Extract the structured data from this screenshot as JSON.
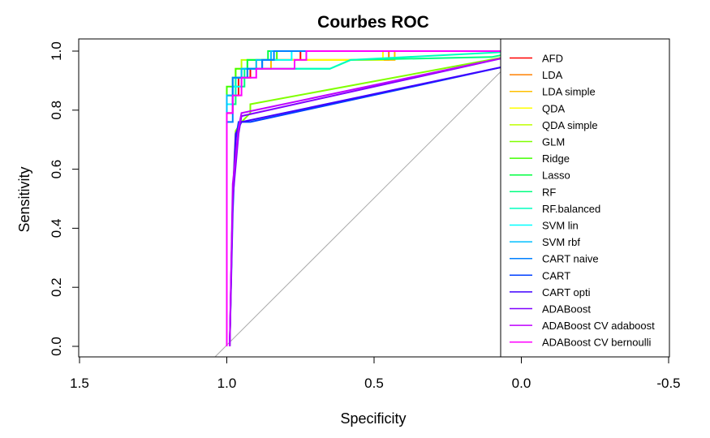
{
  "chart_data": {
    "type": "line",
    "title": "Courbes ROC",
    "xlabel": "Specificity",
    "ylabel": "Sensitivity",
    "xlim": [
      1.5,
      -0.5
    ],
    "ylim": [
      0.0,
      1.0
    ],
    "x_reversed": true,
    "x_ticks": [
      "1.5",
      "1.0",
      "0.5",
      "0.0",
      "-0.5"
    ],
    "y_ticks": [
      "0.0",
      "0.2",
      "0.4",
      "0.6",
      "0.8",
      "1.0"
    ],
    "legend_position": "right",
    "reference_line": {
      "from": [
        1.0,
        0.0
      ],
      "to": [
        0.0,
        1.0
      ],
      "color": "#aaaaaa"
    },
    "series": [
      {
        "name": "AFD",
        "color": "#ff0000",
        "points": [
          [
            1.0,
            0.0
          ],
          [
            1.0,
            0.79
          ],
          [
            0.98,
            0.79
          ],
          [
            0.98,
            0.85
          ],
          [
            0.96,
            0.85
          ],
          [
            0.96,
            0.91
          ],
          [
            0.92,
            0.91
          ],
          [
            0.92,
            0.94
          ],
          [
            0.88,
            0.94
          ],
          [
            0.88,
            0.97
          ],
          [
            0.75,
            0.97
          ],
          [
            0.75,
            1.0
          ],
          [
            0.0,
            1.0
          ]
        ]
      },
      {
        "name": "LDA",
        "color": "#ff8000",
        "points": [
          [
            1.0,
            0.0
          ],
          [
            1.0,
            0.82
          ],
          [
            0.98,
            0.82
          ],
          [
            0.98,
            0.88
          ],
          [
            0.95,
            0.88
          ],
          [
            0.95,
            0.94
          ],
          [
            0.85,
            0.94
          ],
          [
            0.85,
            0.97
          ],
          [
            0.45,
            0.97
          ],
          [
            0.45,
            1.0
          ],
          [
            0.0,
            1.0
          ]
        ]
      },
      {
        "name": "LDA simple",
        "color": "#ffbf00",
        "points": [
          [
            1.0,
            0.0
          ],
          [
            1.0,
            0.85
          ],
          [
            0.98,
            0.85
          ],
          [
            0.98,
            0.91
          ],
          [
            0.95,
            0.91
          ],
          [
            0.95,
            0.94
          ],
          [
            0.85,
            0.94
          ],
          [
            0.85,
            0.97
          ],
          [
            0.43,
            0.97
          ],
          [
            0.43,
            1.0
          ],
          [
            0.0,
            1.0
          ]
        ]
      },
      {
        "name": "QDA",
        "color": "#ffff00",
        "points": [
          [
            1.0,
            0.0
          ],
          [
            1.0,
            0.82
          ],
          [
            0.97,
            0.82
          ],
          [
            0.97,
            0.94
          ],
          [
            0.9,
            0.94
          ],
          [
            0.9,
            0.97
          ],
          [
            0.47,
            0.97
          ],
          [
            0.47,
            1.0
          ],
          [
            0.0,
            1.0
          ]
        ]
      },
      {
        "name": "QDA simple",
        "color": "#bfff00",
        "points": [
          [
            1.0,
            0.0
          ],
          [
            1.0,
            0.85
          ],
          [
            0.98,
            0.85
          ],
          [
            0.98,
            0.91
          ],
          [
            0.95,
            0.91
          ],
          [
            0.95,
            0.97
          ],
          [
            0.85,
            0.97
          ],
          [
            0.85,
            1.0
          ],
          [
            0.0,
            1.0
          ]
        ]
      },
      {
        "name": "GLM",
        "color": "#80ff00",
        "points": [
          [
            0.99,
            0.0
          ],
          [
            0.98,
            0.5
          ],
          [
            0.97,
            0.73
          ],
          [
            0.95,
            0.76
          ],
          [
            0.92,
            0.79
          ],
          [
            0.92,
            0.82
          ],
          [
            0.0,
            0.99
          ]
        ]
      },
      {
        "name": "Ridge",
        "color": "#40ff00",
        "points": [
          [
            1.0,
            0.0
          ],
          [
            1.0,
            0.88
          ],
          [
            0.97,
            0.88
          ],
          [
            0.97,
            0.94
          ],
          [
            0.93,
            0.94
          ],
          [
            0.93,
            0.97
          ],
          [
            0.83,
            0.97
          ],
          [
            0.83,
            1.0
          ],
          [
            0.0,
            1.0
          ]
        ]
      },
      {
        "name": "Lasso",
        "color": "#00ff40",
        "points": [
          [
            1.0,
            0.0
          ],
          [
            1.0,
            0.85
          ],
          [
            0.97,
            0.85
          ],
          [
            0.97,
            0.91
          ],
          [
            0.93,
            0.91
          ],
          [
            0.93,
            0.97
          ],
          [
            0.86,
            0.97
          ],
          [
            0.86,
            1.0
          ],
          [
            0.0,
            1.0
          ]
        ]
      },
      {
        "name": "RF",
        "color": "#00ff80",
        "points": [
          [
            1.0,
            0.0
          ],
          [
            1.0,
            0.82
          ],
          [
            0.97,
            0.82
          ],
          [
            0.97,
            0.88
          ],
          [
            0.94,
            0.88
          ],
          [
            0.94,
            0.94
          ],
          [
            0.65,
            0.94
          ],
          [
            0.58,
            0.97
          ],
          [
            0.1,
            0.98
          ],
          [
            0.0,
            1.0
          ]
        ]
      },
      {
        "name": "RF.balanced",
        "color": "#00ffbf",
        "points": [
          [
            1.0,
            0.0
          ],
          [
            1.0,
            0.85
          ],
          [
            0.97,
            0.85
          ],
          [
            0.97,
            0.91
          ],
          [
            0.93,
            0.91
          ],
          [
            0.93,
            0.94
          ],
          [
            0.65,
            0.94
          ],
          [
            0.58,
            0.97
          ],
          [
            0.0,
            1.0
          ]
        ]
      },
      {
        "name": "SVM lin",
        "color": "#00ffff",
        "points": [
          [
            1.0,
            0.0
          ],
          [
            1.0,
            0.82
          ],
          [
            0.98,
            0.82
          ],
          [
            0.98,
            0.88
          ],
          [
            0.95,
            0.88
          ],
          [
            0.95,
            0.94
          ],
          [
            0.88,
            0.94
          ],
          [
            0.88,
            0.97
          ],
          [
            0.78,
            0.97
          ],
          [
            0.78,
            1.0
          ],
          [
            0.0,
            1.0
          ]
        ]
      },
      {
        "name": "SVM rbf",
        "color": "#00bfff",
        "points": [
          [
            1.0,
            0.0
          ],
          [
            1.0,
            0.85
          ],
          [
            0.98,
            0.85
          ],
          [
            0.98,
            0.91
          ],
          [
            0.95,
            0.91
          ],
          [
            0.95,
            0.94
          ],
          [
            0.9,
            0.94
          ],
          [
            0.9,
            0.97
          ],
          [
            0.85,
            0.97
          ],
          [
            0.85,
            1.0
          ],
          [
            0.0,
            1.0
          ]
        ]
      },
      {
        "name": "CART naive",
        "color": "#0080ff",
        "points": [
          [
            1.0,
            0.0
          ],
          [
            1.0,
            0.76
          ],
          [
            0.98,
            0.76
          ],
          [
            0.98,
            0.91
          ],
          [
            0.93,
            0.91
          ],
          [
            0.93,
            0.94
          ],
          [
            0.88,
            0.94
          ],
          [
            0.88,
            0.97
          ],
          [
            0.84,
            0.97
          ],
          [
            0.84,
            1.0
          ],
          [
            0.0,
            1.0
          ]
        ]
      },
      {
        "name": "CART",
        "color": "#0040ff",
        "points": [
          [
            0.99,
            0.0
          ],
          [
            0.98,
            0.45
          ],
          [
            0.97,
            0.7
          ],
          [
            0.96,
            0.76
          ],
          [
            0.92,
            0.76
          ],
          [
            0.0,
            0.96
          ]
        ]
      },
      {
        "name": "CART opti",
        "color": "#4000ff",
        "points": [
          [
            0.99,
            0.0
          ],
          [
            0.98,
            0.5
          ],
          [
            0.97,
            0.72
          ],
          [
            0.95,
            0.76
          ],
          [
            0.0,
            0.96
          ]
        ]
      },
      {
        "name": "ADABoost",
        "color": "#8000ff",
        "points": [
          [
            0.99,
            0.0
          ],
          [
            0.98,
            0.5
          ],
          [
            0.96,
            0.72
          ],
          [
            0.95,
            0.78
          ],
          [
            0.0,
            0.99
          ]
        ]
      },
      {
        "name": "ADABoost CV adaboost",
        "color": "#bf00ff",
        "points": [
          [
            0.99,
            0.0
          ],
          [
            0.98,
            0.55
          ],
          [
            0.96,
            0.74
          ],
          [
            0.95,
            0.79
          ],
          [
            0.0,
            0.99
          ]
        ]
      },
      {
        "name": "ADABoost CV bernoulli",
        "color": "#ff00ff",
        "points": [
          [
            1.0,
            0.0
          ],
          [
            1.0,
            0.79
          ],
          [
            0.98,
            0.79
          ],
          [
            0.98,
            0.85
          ],
          [
            0.95,
            0.85
          ],
          [
            0.95,
            0.91
          ],
          [
            0.9,
            0.91
          ],
          [
            0.9,
            0.94
          ],
          [
            0.77,
            0.94
          ],
          [
            0.77,
            0.97
          ],
          [
            0.73,
            0.97
          ],
          [
            0.73,
            1.0
          ],
          [
            0.0,
            1.0
          ]
        ]
      }
    ]
  }
}
